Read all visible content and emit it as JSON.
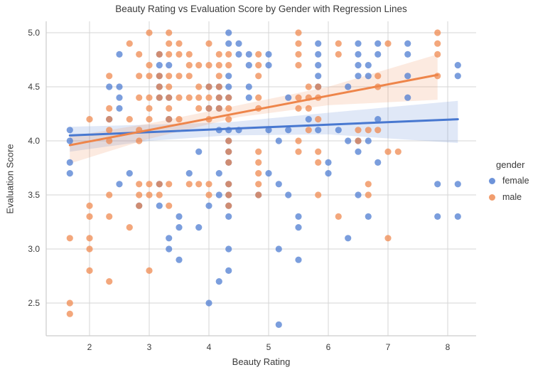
{
  "chart_data": {
    "type": "scatter",
    "title": "Beauty Rating vs Evaluation Score by Gender with Regression Lines",
    "xlabel": "Beauty Rating",
    "ylabel": "Evaluation Score",
    "xlim": [
      1.27,
      8.48
    ],
    "ylim": [
      2.2,
      5.1
    ],
    "grid": true,
    "x_ticks": [
      2,
      3,
      4,
      5,
      6,
      7,
      8
    ],
    "x_tick_labels": [
      "2",
      "3",
      "4",
      "5",
      "6",
      "7",
      "8"
    ],
    "y_ticks": [
      5.0,
      4.5,
      4.0,
      3.5,
      3.0,
      2.5
    ],
    "y_tick_labels": [
      "5.0",
      "4.5",
      "4.0",
      "3.5",
      "3.0",
      "2.5"
    ],
    "colors": {
      "female": "#4878d0",
      "male": "#ee854a",
      "grid": "#d6d6d6",
      "spine": "#cccccc"
    },
    "legend": {
      "title": "gender",
      "position": "right",
      "entries": [
        {
          "label": "female",
          "color": "#4878d0"
        },
        {
          "label": "male",
          "color": "#ee854a"
        }
      ]
    },
    "series": [
      {
        "name": "female",
        "color": "#4878d0",
        "points": [
          [
            1.67,
            4.1
          ],
          [
            1.67,
            4.0
          ],
          [
            1.67,
            3.8
          ],
          [
            1.67,
            3.7
          ],
          [
            2.33,
            4.5
          ],
          [
            2.33,
            4.2
          ],
          [
            2.5,
            4.8
          ],
          [
            2.5,
            4.5
          ],
          [
            2.5,
            4.4
          ],
          [
            2.5,
            4.3
          ],
          [
            2.5,
            3.6
          ],
          [
            2.67,
            3.7
          ],
          [
            2.83,
            3.4
          ],
          [
            3.17,
            4.8
          ],
          [
            3.17,
            4.7
          ],
          [
            3.17,
            4.6
          ],
          [
            3.17,
            4.5
          ],
          [
            3.17,
            4.4
          ],
          [
            3.17,
            3.6
          ],
          [
            3.17,
            3.4
          ],
          [
            3.33,
            4.7
          ],
          [
            3.33,
            4.4
          ],
          [
            3.33,
            4.2
          ],
          [
            3.33,
            3.1
          ],
          [
            3.33,
            3.0
          ],
          [
            3.5,
            3.3
          ],
          [
            3.5,
            3.2
          ],
          [
            3.5,
            2.9
          ],
          [
            3.67,
            3.7
          ],
          [
            3.83,
            3.9
          ],
          [
            3.83,
            3.2
          ],
          [
            4.0,
            4.5
          ],
          [
            4.0,
            4.3
          ],
          [
            4.0,
            3.4
          ],
          [
            4.0,
            2.5
          ],
          [
            4.17,
            4.5
          ],
          [
            4.17,
            4.4
          ],
          [
            4.17,
            4.3
          ],
          [
            4.17,
            4.1
          ],
          [
            4.17,
            3.7
          ],
          [
            4.17,
            3.5
          ],
          [
            4.17,
            2.7
          ],
          [
            4.33,
            5.0
          ],
          [
            4.33,
            4.9
          ],
          [
            4.33,
            4.6
          ],
          [
            4.33,
            4.5
          ],
          [
            4.33,
            4.4
          ],
          [
            4.33,
            4.1
          ],
          [
            4.33,
            4.0
          ],
          [
            4.33,
            3.9
          ],
          [
            4.33,
            3.8
          ],
          [
            4.33,
            3.6
          ],
          [
            4.33,
            3.5
          ],
          [
            4.33,
            3.4
          ],
          [
            4.33,
            3.3
          ],
          [
            4.33,
            3.0
          ],
          [
            4.33,
            2.8
          ],
          [
            4.5,
            4.9
          ],
          [
            4.5,
            4.8
          ],
          [
            4.5,
            4.1
          ],
          [
            4.67,
            4.8
          ],
          [
            4.67,
            4.7
          ],
          [
            4.67,
            4.5
          ],
          [
            4.67,
            4.4
          ],
          [
            4.83,
            3.5
          ],
          [
            5.0,
            4.8
          ],
          [
            5.0,
            4.7
          ],
          [
            5.0,
            4.1
          ],
          [
            5.0,
            3.7
          ],
          [
            5.17,
            4.0
          ],
          [
            5.17,
            3.6
          ],
          [
            5.17,
            3.0
          ],
          [
            5.17,
            2.3
          ],
          [
            5.33,
            4.4
          ],
          [
            5.33,
            4.1
          ],
          [
            5.33,
            3.5
          ],
          [
            5.5,
            3.3
          ],
          [
            5.5,
            3.2
          ],
          [
            5.5,
            2.9
          ],
          [
            5.67,
            4.2
          ],
          [
            5.83,
            4.9
          ],
          [
            5.83,
            4.8
          ],
          [
            5.83,
            4.7
          ],
          [
            5.83,
            4.6
          ],
          [
            5.83,
            4.5
          ],
          [
            5.83,
            4.1
          ],
          [
            6.0,
            3.8
          ],
          [
            6.0,
            3.7
          ],
          [
            6.17,
            4.1
          ],
          [
            6.33,
            4.5
          ],
          [
            6.33,
            4.0
          ],
          [
            6.33,
            3.1
          ],
          [
            6.5,
            4.9
          ],
          [
            6.5,
            4.8
          ],
          [
            6.5,
            4.7
          ],
          [
            6.5,
            4.6
          ],
          [
            6.5,
            4.0
          ],
          [
            6.5,
            3.9
          ],
          [
            6.5,
            3.5
          ],
          [
            6.67,
            4.7
          ],
          [
            6.67,
            4.6
          ],
          [
            6.67,
            4.0
          ],
          [
            6.67,
            3.3
          ],
          [
            6.83,
            4.9
          ],
          [
            6.83,
            4.8
          ],
          [
            6.83,
            4.2
          ],
          [
            6.83,
            3.8
          ],
          [
            7.33,
            4.9
          ],
          [
            7.33,
            4.8
          ],
          [
            7.33,
            4.6
          ],
          [
            7.33,
            4.4
          ],
          [
            7.83,
            3.6
          ],
          [
            7.83,
            3.3
          ],
          [
            8.17,
            4.7
          ],
          [
            8.17,
            4.6
          ],
          [
            8.17,
            3.6
          ],
          [
            8.17,
            3.3
          ]
        ],
        "regression": {
          "x": [
            1.67,
            8.17
          ],
          "y": [
            4.05,
            4.2
          ]
        },
        "ci_band": [
          [
            1.67,
            4.13,
            3.9
          ],
          [
            3.0,
            4.15,
            4.0
          ],
          [
            4.3,
            4.17,
            4.05
          ],
          [
            6.0,
            4.26,
            4.06
          ],
          [
            8.17,
            4.37,
            3.98
          ]
        ]
      },
      {
        "name": "male",
        "color": "#ee854a",
        "points": [
          [
            1.67,
            3.1
          ],
          [
            1.67,
            2.5
          ],
          [
            1.67,
            2.4
          ],
          [
            2.0,
            4.2
          ],
          [
            2.0,
            3.4
          ],
          [
            2.0,
            3.3
          ],
          [
            2.0,
            3.1
          ],
          [
            2.0,
            3.0
          ],
          [
            2.0,
            2.8
          ],
          [
            2.33,
            4.6
          ],
          [
            2.33,
            4.3
          ],
          [
            2.33,
            4.2
          ],
          [
            2.33,
            4.1
          ],
          [
            2.33,
            4.0
          ],
          [
            2.33,
            3.5
          ],
          [
            2.33,
            3.3
          ],
          [
            2.33,
            2.7
          ],
          [
            2.67,
            4.9
          ],
          [
            2.67,
            4.2
          ],
          [
            2.67,
            3.2
          ],
          [
            2.83,
            4.8
          ],
          [
            2.83,
            4.6
          ],
          [
            2.83,
            4.4
          ],
          [
            2.83,
            4.1
          ],
          [
            2.83,
            4.0
          ],
          [
            2.83,
            3.6
          ],
          [
            2.83,
            3.5
          ],
          [
            2.83,
            3.4
          ],
          [
            3.0,
            5.0
          ],
          [
            3.0,
            4.7
          ],
          [
            3.0,
            4.6
          ],
          [
            3.0,
            4.4
          ],
          [
            3.0,
            4.3
          ],
          [
            3.0,
            4.2
          ],
          [
            3.0,
            3.6
          ],
          [
            3.0,
            3.5
          ],
          [
            3.0,
            2.8
          ],
          [
            3.17,
            4.8
          ],
          [
            3.17,
            4.6
          ],
          [
            3.17,
            4.5
          ],
          [
            3.17,
            4.4
          ],
          [
            3.17,
            3.6
          ],
          [
            3.17,
            3.5
          ],
          [
            3.33,
            5.0
          ],
          [
            3.33,
            4.9
          ],
          [
            3.33,
            4.8
          ],
          [
            3.33,
            4.6
          ],
          [
            3.33,
            4.5
          ],
          [
            3.33,
            4.4
          ],
          [
            3.33,
            4.3
          ],
          [
            3.33,
            4.2
          ],
          [
            3.33,
            3.6
          ],
          [
            3.33,
            3.4
          ],
          [
            3.5,
            4.9
          ],
          [
            3.5,
            4.8
          ],
          [
            3.5,
            4.6
          ],
          [
            3.5,
            4.4
          ],
          [
            3.5,
            4.2
          ],
          [
            3.67,
            4.8
          ],
          [
            3.67,
            4.7
          ],
          [
            3.67,
            4.6
          ],
          [
            3.67,
            4.4
          ],
          [
            3.67,
            3.6
          ],
          [
            3.83,
            4.7
          ],
          [
            3.83,
            4.5
          ],
          [
            3.83,
            4.4
          ],
          [
            3.83,
            4.3
          ],
          [
            3.83,
            3.6
          ],
          [
            4.0,
            4.9
          ],
          [
            4.0,
            4.7
          ],
          [
            4.0,
            4.5
          ],
          [
            4.0,
            4.4
          ],
          [
            4.0,
            4.3
          ],
          [
            4.0,
            4.2
          ],
          [
            4.0,
            3.6
          ],
          [
            4.0,
            3.5
          ],
          [
            4.17,
            4.8
          ],
          [
            4.17,
            4.7
          ],
          [
            4.17,
            4.6
          ],
          [
            4.17,
            4.5
          ],
          [
            4.17,
            4.4
          ],
          [
            4.17,
            4.3
          ],
          [
            4.33,
            4.8
          ],
          [
            4.33,
            4.7
          ],
          [
            4.33,
            4.4
          ],
          [
            4.33,
            4.3
          ],
          [
            4.33,
            4.2
          ],
          [
            4.33,
            4.0
          ],
          [
            4.33,
            3.9
          ],
          [
            4.33,
            3.8
          ],
          [
            4.33,
            3.6
          ],
          [
            4.33,
            3.5
          ],
          [
            4.33,
            3.4
          ],
          [
            4.83,
            4.8
          ],
          [
            4.83,
            4.7
          ],
          [
            4.83,
            4.6
          ],
          [
            4.83,
            4.4
          ],
          [
            4.83,
            4.3
          ],
          [
            4.83,
            3.9
          ],
          [
            4.83,
            3.8
          ],
          [
            4.83,
            3.7
          ],
          [
            4.83,
            3.6
          ],
          [
            4.83,
            3.5
          ],
          [
            5.5,
            5.0
          ],
          [
            5.5,
            4.9
          ],
          [
            5.5,
            4.8
          ],
          [
            5.5,
            4.7
          ],
          [
            5.5,
            4.4
          ],
          [
            5.5,
            4.3
          ],
          [
            5.5,
            4.0
          ],
          [
            5.5,
            3.9
          ],
          [
            5.67,
            4.5
          ],
          [
            5.67,
            4.4
          ],
          [
            5.67,
            4.3
          ],
          [
            5.67,
            4.1
          ],
          [
            5.83,
            4.5
          ],
          [
            5.83,
            4.4
          ],
          [
            5.83,
            4.2
          ],
          [
            5.83,
            3.9
          ],
          [
            5.83,
            3.8
          ],
          [
            5.83,
            3.5
          ],
          [
            6.17,
            4.9
          ],
          [
            6.17,
            4.8
          ],
          [
            6.17,
            3.3
          ],
          [
            6.5,
            4.1
          ],
          [
            6.5,
            4.0
          ],
          [
            6.67,
            4.1
          ],
          [
            6.67,
            3.6
          ],
          [
            6.67,
            3.5
          ],
          [
            6.83,
            4.6
          ],
          [
            6.83,
            4.5
          ],
          [
            6.83,
            4.1
          ],
          [
            7.0,
            4.9
          ],
          [
            7.0,
            3.9
          ],
          [
            7.0,
            3.1
          ],
          [
            7.17,
            3.9
          ],
          [
            7.83,
            5.0
          ],
          [
            7.83,
            4.9
          ],
          [
            7.83,
            4.8
          ],
          [
            7.83,
            4.6
          ]
        ],
        "regression": {
          "x": [
            1.67,
            7.83
          ],
          "y": [
            3.96,
            4.61
          ]
        },
        "ci_band": [
          [
            1.67,
            4.04,
            3.79
          ],
          [
            3.0,
            4.16,
            4.02
          ],
          [
            4.5,
            4.33,
            4.22
          ],
          [
            6.0,
            4.5,
            4.33
          ],
          [
            7.83,
            4.8,
            4.38
          ]
        ]
      }
    ]
  }
}
